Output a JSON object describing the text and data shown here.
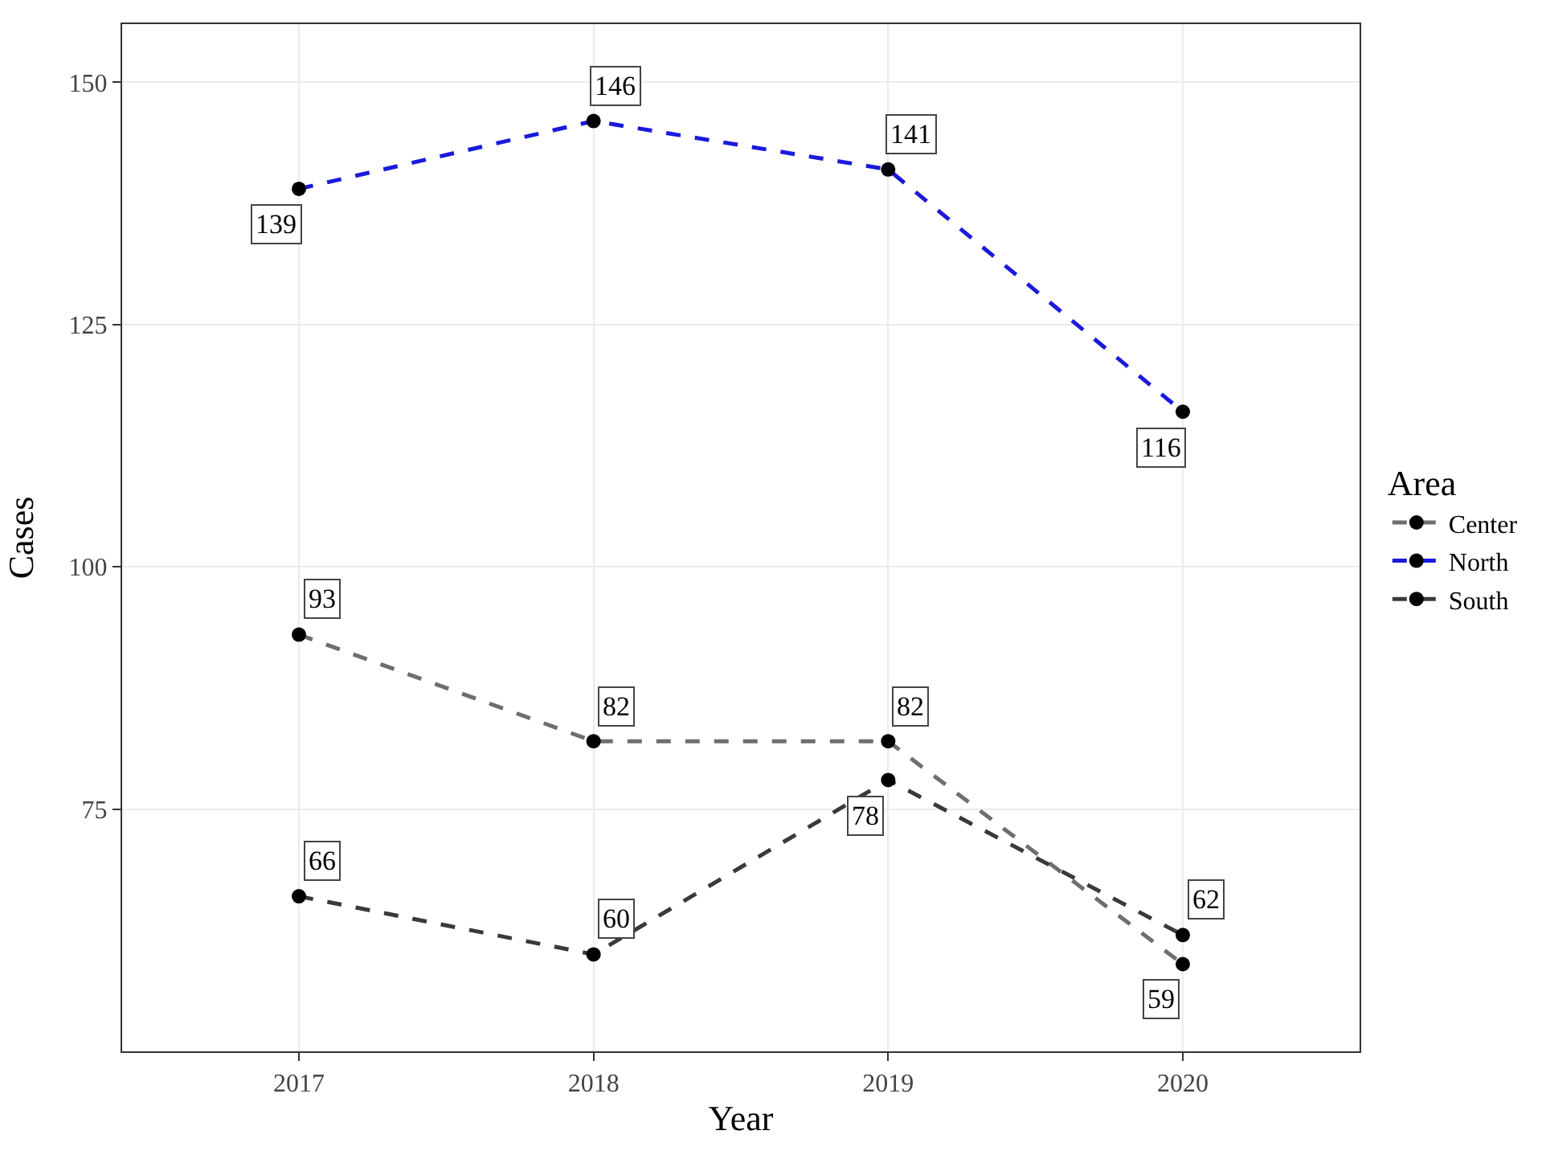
{
  "chart_data": {
    "type": "line",
    "xlabel": "Year",
    "ylabel": "Cases",
    "legend_title": "Area",
    "x": [
      2017,
      2018,
      2019,
      2020
    ],
    "series": [
      {
        "name": "Center",
        "color": "#6e6e6e",
        "values": [
          93,
          82,
          82,
          59
        ]
      },
      {
        "name": "North",
        "color": "#1a1adc",
        "values": [
          139,
          146,
          141,
          116
        ]
      },
      {
        "name": "South",
        "color": "#3a3a3a",
        "values": [
          66,
          60,
          78,
          62
        ]
      }
    ],
    "xlim": [
      2016.4,
      2020.6
    ],
    "xticks": [
      2017,
      2018,
      2019,
      2020
    ],
    "ylim": [
      50,
      156
    ],
    "yticks": [
      75,
      100,
      125,
      150
    ],
    "data_labels": true,
    "grid": true,
    "legend": "right",
    "marker": "circle",
    "line_style": "dashed"
  }
}
